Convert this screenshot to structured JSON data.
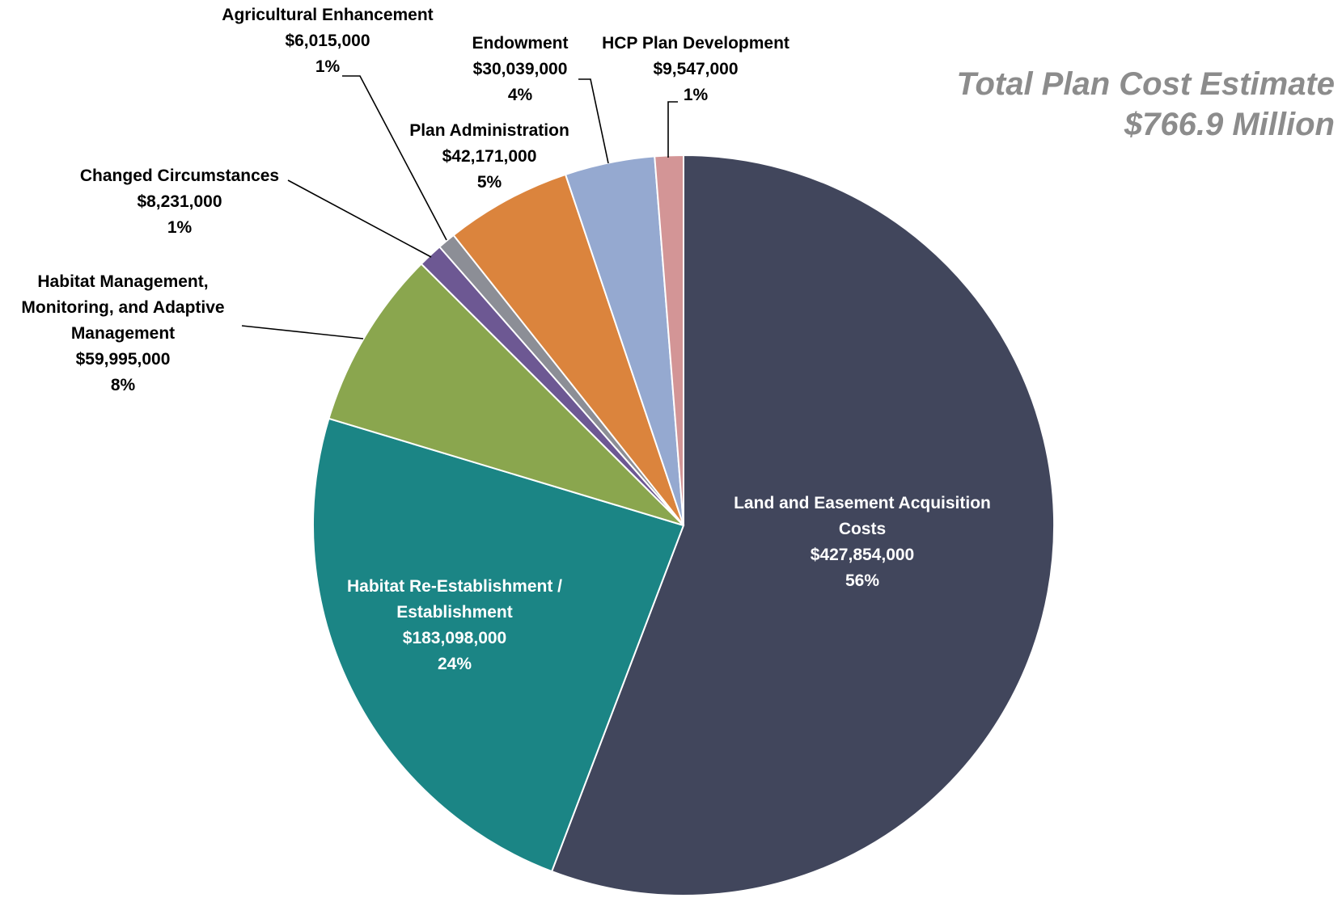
{
  "chart_data": {
    "type": "pie",
    "total_title": [
      "Total Plan Cost Estimate",
      "$766.9 Million"
    ],
    "slices": [
      {
        "label": [
          "Land and Easement Acquisition",
          "Costs"
        ],
        "value": 427854000,
        "value_text": "$427,854,000",
        "pct": "56%",
        "color": "#41465c",
        "label_inside": true
      },
      {
        "label": [
          "Habitat Re-Establishment /",
          "Establishment"
        ],
        "value": 183098000,
        "value_text": "$183,098,000",
        "pct": "24%",
        "color": "#1b8585",
        "label_inside": true
      },
      {
        "label": [
          "Habitat Management,",
          "Monitoring, and Adaptive",
          "Management"
        ],
        "value": 59995000,
        "value_text": "$59,995,000",
        "pct": "8%",
        "color": "#8aa64e",
        "label_inside": false
      },
      {
        "label": [
          "Changed Circumstances"
        ],
        "value": 8231000,
        "value_text": "$8,231,000",
        "pct": "1%",
        "color": "#6d5893",
        "label_inside": false
      },
      {
        "label": [
          "Agricultural Enhancement"
        ],
        "value": 6015000,
        "value_text": "$6,015,000",
        "pct": "1%",
        "color": "#8c8e96",
        "label_inside": false
      },
      {
        "label": [
          "Plan Administration"
        ],
        "value": 42171000,
        "value_text": "$42,171,000",
        "pct": "5%",
        "color": "#db843d",
        "label_inside": false
      },
      {
        "label": [
          "Endowment"
        ],
        "value": 30039000,
        "value_text": "$30,039,000",
        "pct": "4%",
        "color": "#95a9d0",
        "label_inside": false
      },
      {
        "label": [
          "HCP Plan Development"
        ],
        "value": 9547000,
        "value_text": "$9,547,000",
        "pct": "1%",
        "color": "#d39596",
        "label_inside": false
      }
    ]
  }
}
